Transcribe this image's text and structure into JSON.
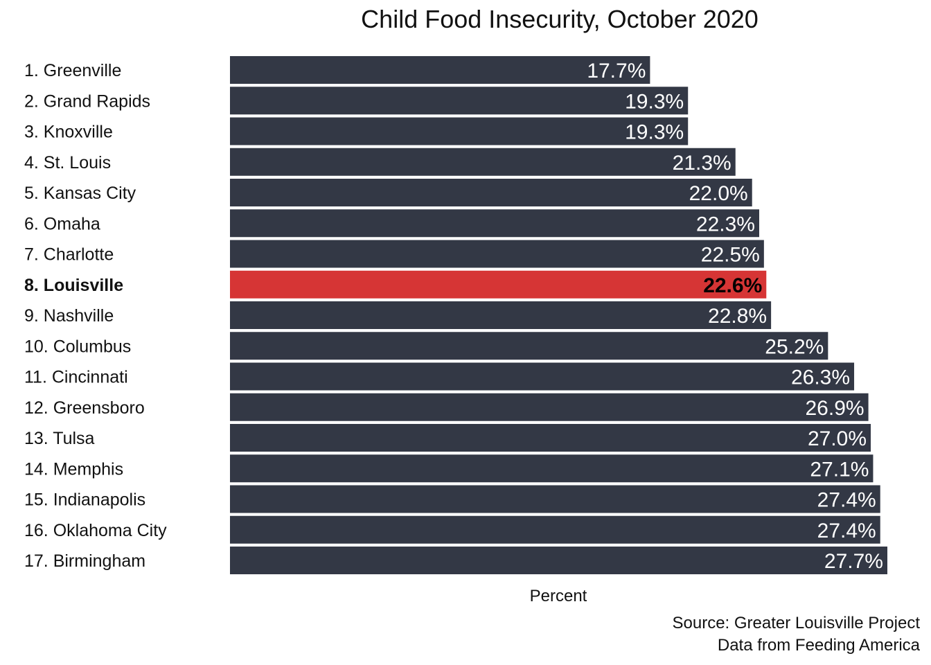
{
  "chart_data": {
    "type": "bar",
    "orientation": "horizontal",
    "title": "Child Food Insecurity, October 2020",
    "xlabel": "Percent",
    "ylabel": "",
    "categories": [
      "1. Greenville",
      "2. Grand Rapids",
      "3. Knoxville",
      "4. St. Louis",
      "5. Kansas City",
      "6. Omaha",
      "7. Charlotte",
      "8. Louisville",
      "9. Nashville",
      "10. Columbus",
      "11. Cincinnati",
      "12. Greensboro",
      "13. Tulsa",
      "14. Memphis",
      "15. Indianapolis",
      "16. Oklahoma City",
      "17. Birmingham"
    ],
    "values": [
      17.7,
      19.3,
      19.3,
      21.3,
      22.0,
      22.3,
      22.5,
      22.6,
      22.8,
      25.2,
      26.3,
      26.9,
      27.0,
      27.1,
      27.4,
      27.4,
      27.7
    ],
    "value_labels": [
      "17.7%",
      "19.3%",
      "19.3%",
      "21.3%",
      "22.0%",
      "22.3%",
      "22.5%",
      "22.6%",
      "22.8%",
      "25.2%",
      "26.3%",
      "26.9%",
      "27.0%",
      "27.1%",
      "27.4%",
      "27.4%",
      "27.7%"
    ],
    "highlight_category": "8. Louisville",
    "xlim": [
      0,
      27.7
    ],
    "grid": false,
    "legend": "none",
    "colors": {
      "bar": "#333845",
      "highlight": "#d63535"
    }
  },
  "source": {
    "line1": "Source: Greater Louisville Project",
    "line2": "Data from Feeding America"
  }
}
